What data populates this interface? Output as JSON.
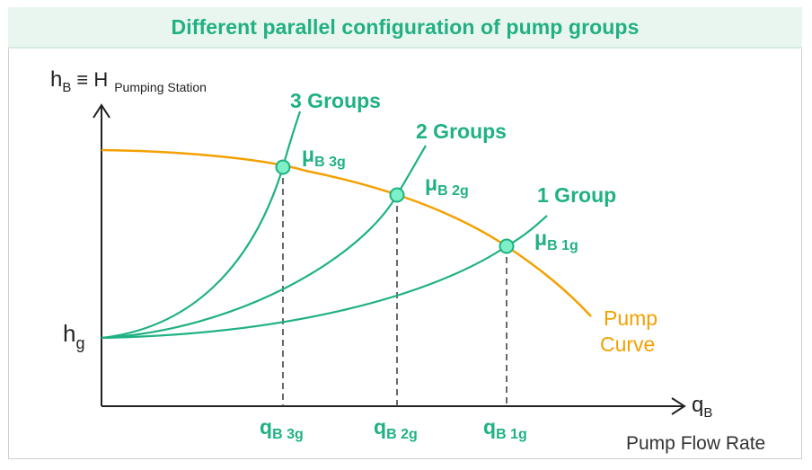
{
  "title": "Different parallel configuration of pump groups",
  "axis": {
    "y_main": "h",
    "y_sub": "B",
    "y_equiv": "≡ H",
    "y_sub2": "Pumping Station",
    "x_main": "q",
    "x_sub": "B",
    "x_caption": "Pump Flow Rate",
    "hg_main": "h",
    "hg_sub": "g"
  },
  "curves": {
    "groups": [
      {
        "label": "3 Groups",
        "point_main": "μ",
        "point_sub": "B 3g",
        "q_main": "q",
        "q_sub": "B 3g"
      },
      {
        "label": "2 Groups",
        "point_main": "μ",
        "point_sub": "B 2g",
        "q_main": "q",
        "q_sub": "B 2g"
      },
      {
        "label": "1 Group",
        "point_main": "μ",
        "point_sub": "B 1g",
        "q_main": "q",
        "q_sub": "B 1g"
      }
    ],
    "pump_curve_line1": "Pump",
    "pump_curve_line2": "Curve"
  },
  "colors": {
    "green": "#1fb184",
    "orange": "#f4a000",
    "point_fill": "#7ef0c6",
    "axis": "#222222"
  }
}
